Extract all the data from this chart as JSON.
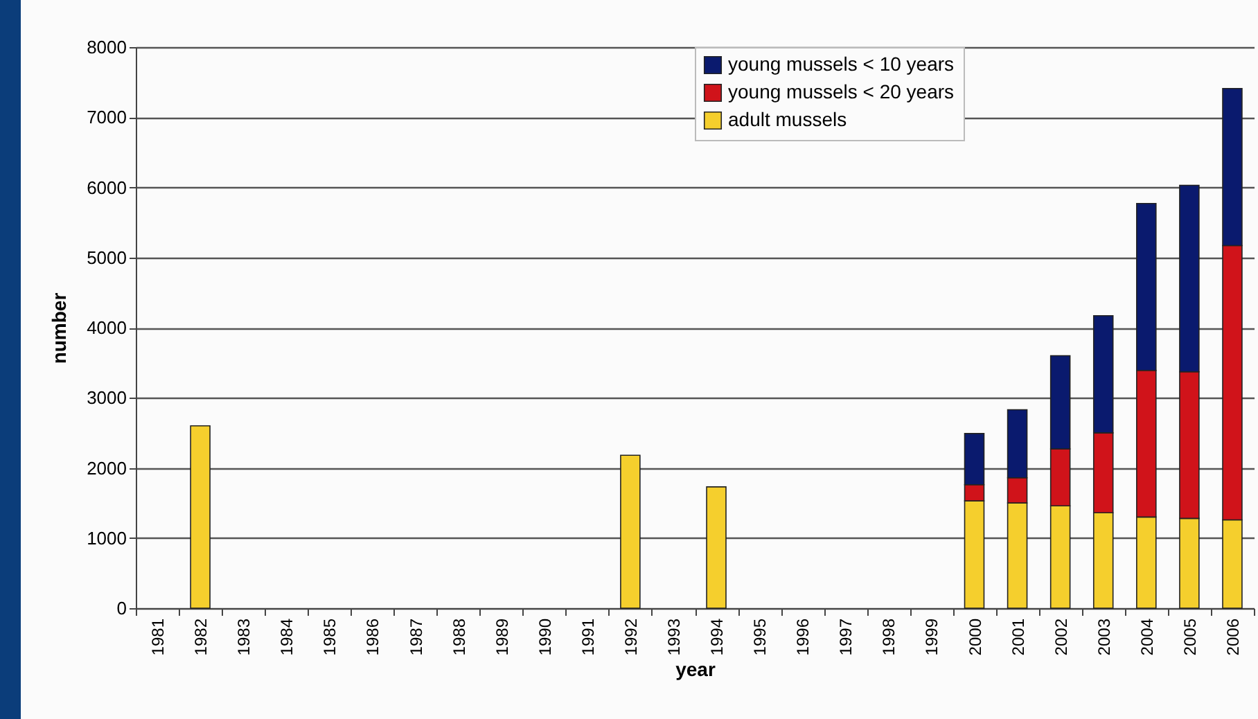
{
  "chart_data": {
    "type": "bar",
    "stacked": true,
    "xlabel": "year",
    "ylabel": "number",
    "categories": [
      "1981",
      "1982",
      "1983",
      "1984",
      "1985",
      "1986",
      "1987",
      "1988",
      "1989",
      "1990",
      "1991",
      "1992",
      "1993",
      "1994",
      "1995",
      "1996",
      "1997",
      "1998",
      "1999",
      "2000",
      "2001",
      "2002",
      "2003",
      "2004",
      "2005",
      "2006"
    ],
    "series": [
      {
        "name": "adult mussels",
        "color": "#f5cf2d",
        "values": [
          null,
          2600,
          null,
          null,
          null,
          null,
          null,
          null,
          null,
          null,
          null,
          2180,
          null,
          1730,
          null,
          null,
          null,
          null,
          null,
          1530,
          1500,
          1460,
          1360,
          1300,
          1280,
          1260
        ]
      },
      {
        "name": "young mussels < 20 years",
        "color": "#d0131a",
        "values": [
          null,
          null,
          null,
          null,
          null,
          null,
          null,
          null,
          null,
          null,
          null,
          null,
          null,
          null,
          null,
          null,
          null,
          null,
          null,
          230,
          360,
          810,
          1140,
          2090,
          2090,
          3910
        ]
      },
      {
        "name": "young mussels < 10 years",
        "color": "#0a1a6e",
        "values": [
          null,
          null,
          null,
          null,
          null,
          null,
          null,
          null,
          null,
          null,
          null,
          null,
          null,
          null,
          null,
          null,
          null,
          null,
          null,
          730,
          970,
          1330,
          1670,
          2380,
          2660,
          2240
        ]
      }
    ],
    "ylim": [
      0,
      8000
    ],
    "yticks": [
      0,
      1000,
      2000,
      3000,
      4000,
      5000,
      6000,
      7000,
      8000
    ],
    "grid": "y",
    "legend": "top right"
  }
}
